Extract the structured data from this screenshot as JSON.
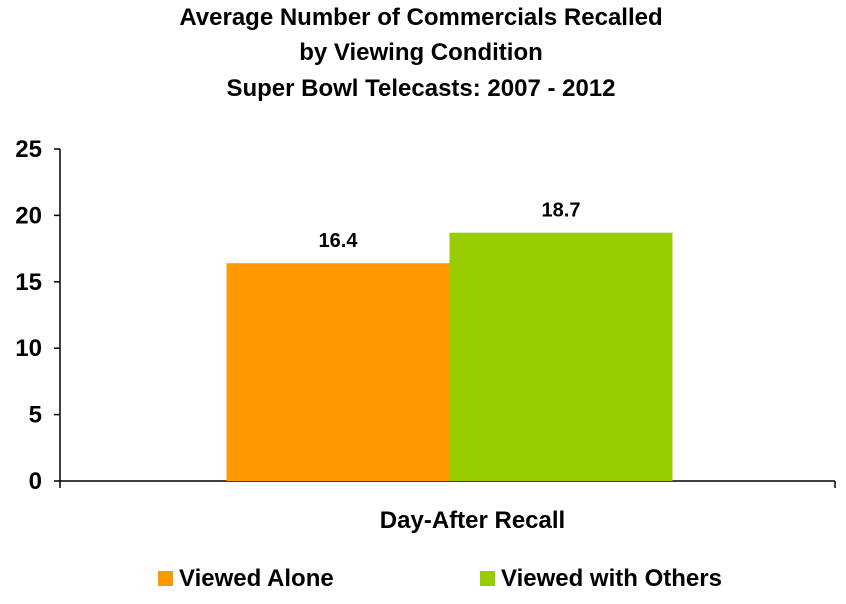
{
  "chart_data": {
    "type": "bar",
    "title": [
      "Average Number of Commercials Recalled",
      "by Viewing Condition",
      "Super Bowl Telecasts: 2007 - 2012"
    ],
    "categories": [
      "Day-After Recall"
    ],
    "series": [
      {
        "name": "Viewed Alone",
        "values": [
          16.4
        ],
        "value_labels": [
          "16.4"
        ],
        "color": "#FF9900"
      },
      {
        "name": "Viewed with Others",
        "values": [
          18.7
        ],
        "value_labels": [
          "18.7"
        ],
        "color": "#99CC00"
      }
    ],
    "xlabel": "",
    "ylabel": "",
    "ylim": [
      0,
      25
    ],
    "yticks": [
      0,
      5,
      10,
      15,
      20,
      25
    ],
    "ytick_labels": [
      "0",
      "5",
      "10",
      "15",
      "20",
      "25"
    ],
    "grid": false,
    "legend_position": "bottom"
  }
}
